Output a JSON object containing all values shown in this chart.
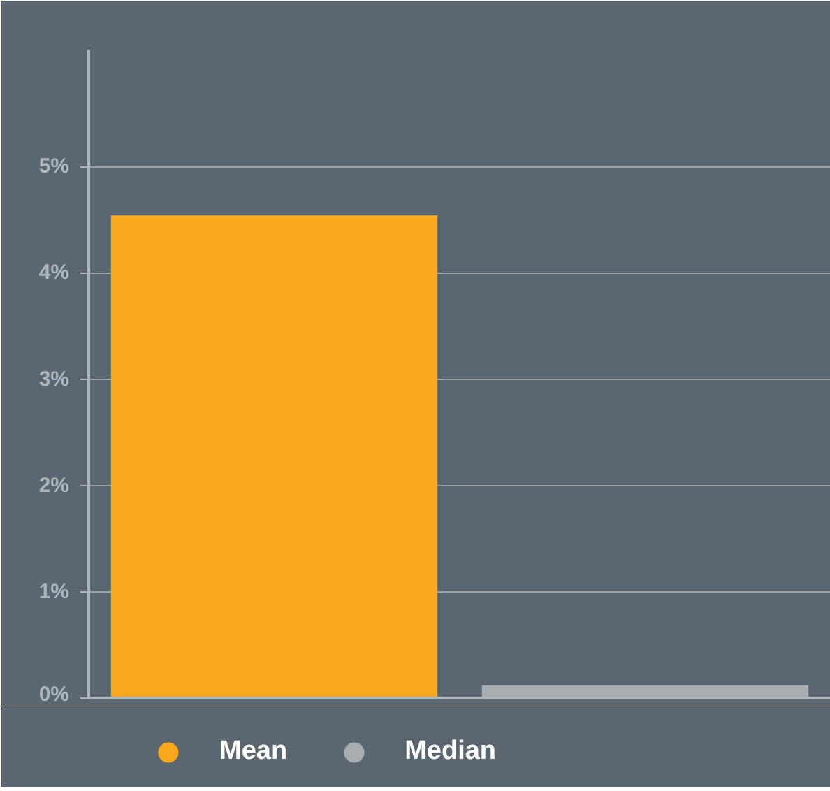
{
  "chart_data": {
    "type": "bar",
    "categories": [
      null
    ],
    "series": [
      {
        "name": "Mean",
        "color": "#f9a81b",
        "values": [
          4.54
        ]
      },
      {
        "name": "Median",
        "color": "#a7adb1",
        "values": [
          0.12
        ]
      }
    ],
    "ylim": [
      0,
      6.1
    ],
    "yticks": [
      {
        "value": 0,
        "label": "0%"
      },
      {
        "value": 1,
        "label": "1%"
      },
      {
        "value": 2,
        "label": "2%"
      },
      {
        "value": 3,
        "label": "3%"
      },
      {
        "value": 4,
        "label": "4%"
      },
      {
        "value": 5,
        "label": "5%"
      }
    ],
    "grid": "y",
    "legend": "bottom",
    "tick_labels": "y"
  }
}
